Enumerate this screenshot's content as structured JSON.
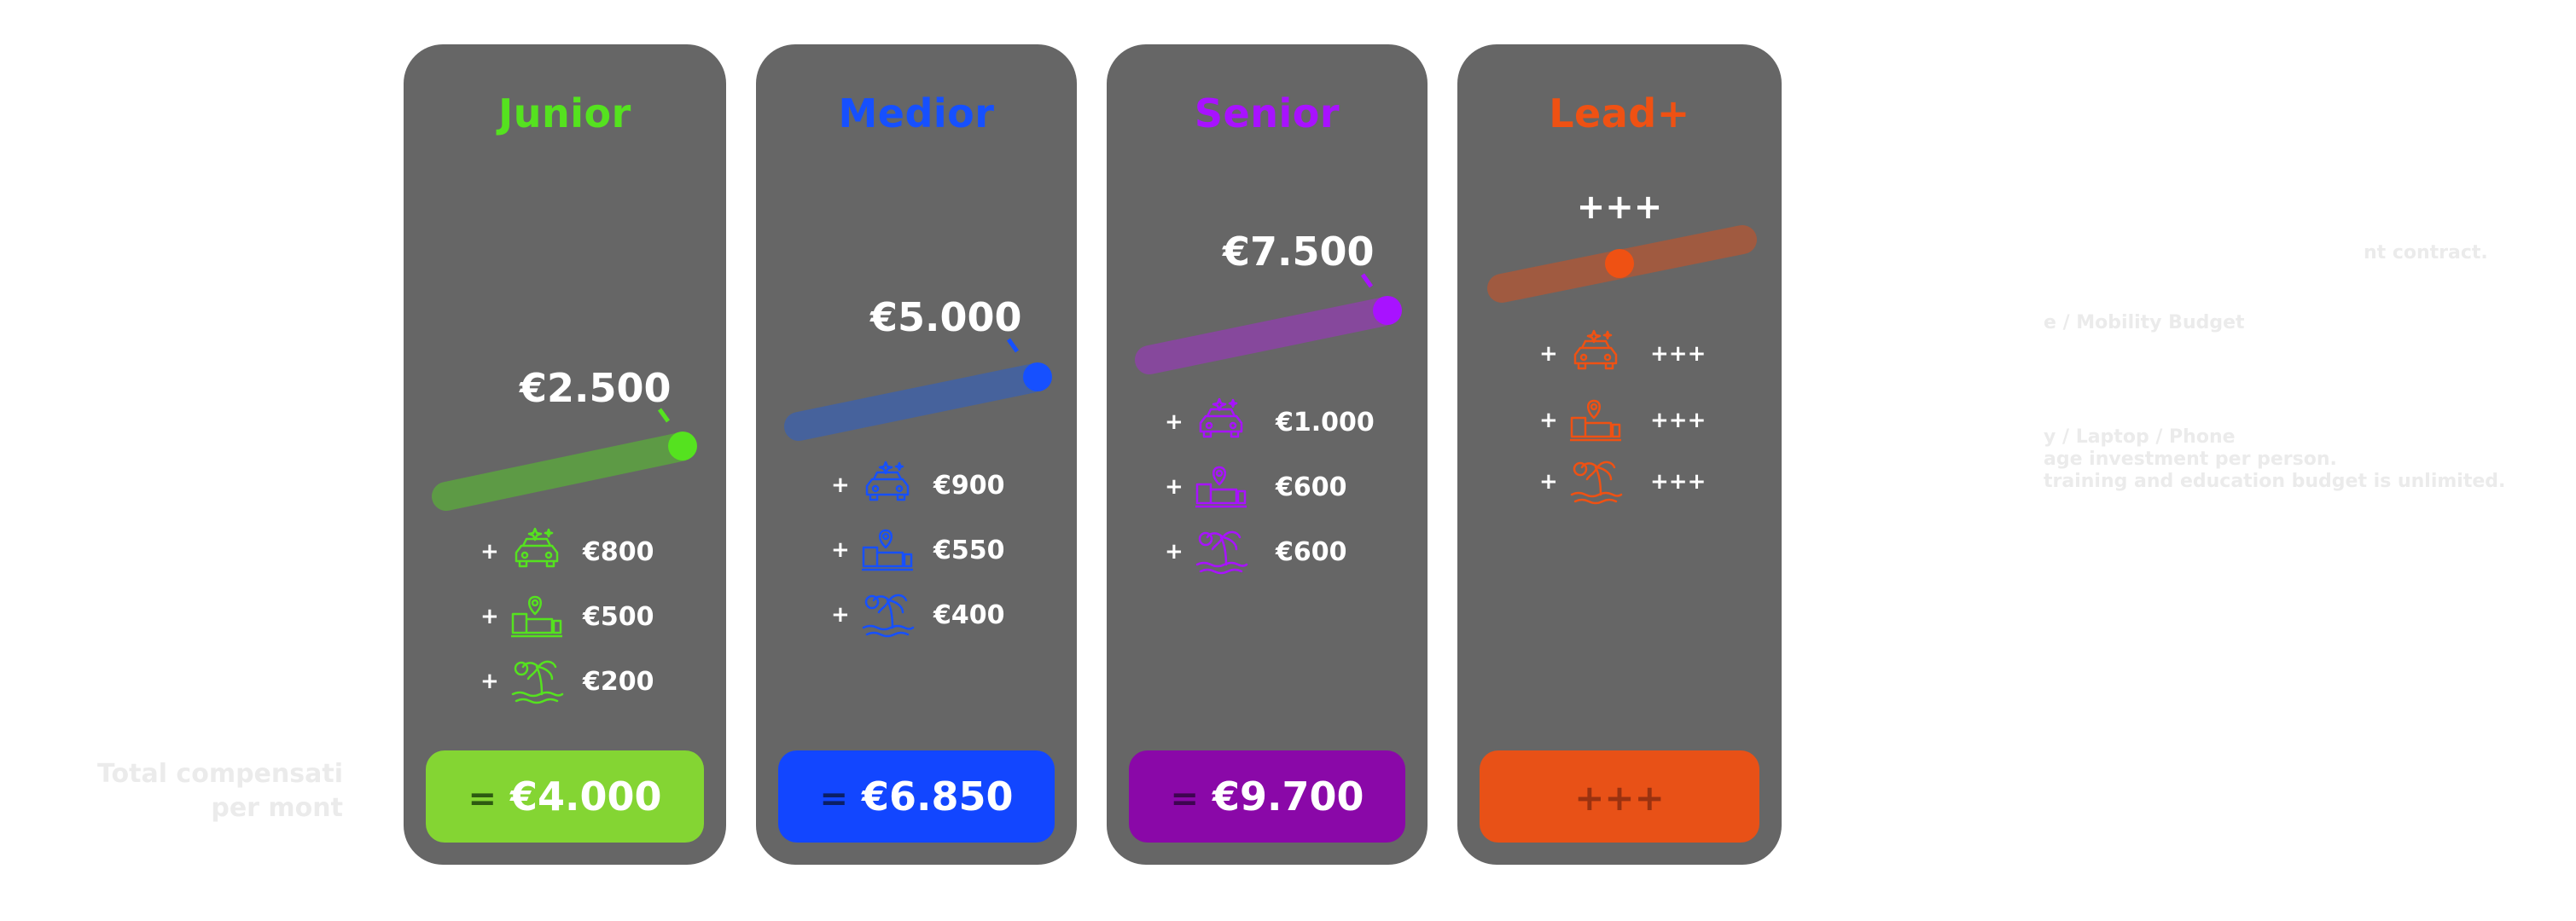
{
  "left_label": {
    "line1": "Total compensati",
    "line2": "per mont"
  },
  "right_notes": {
    "line1": "nt contract.",
    "line2": "e / Mobility Budget",
    "line3": "y / Laptop / Phone",
    "line4": "age investment per person.",
    "line5": "training and education budget is unlimited."
  },
  "colors": {
    "card": "#666666",
    "junior": "#55e21f",
    "medior": "#1650ff",
    "senior": "#a812ff",
    "lead": "#ef5113"
  },
  "icons": [
    "car-icon",
    "home-office-icon",
    "vacation-palm-icon"
  ],
  "cards": [
    {
      "title": "Junior",
      "color": "#55e21f",
      "track": "#5d9a45",
      "salary": "€2.500",
      "benefits": [
        "€800",
        "€500",
        "€200"
      ],
      "total_prefix": "=",
      "total": "€4.000",
      "total_bg": "#84d533",
      "total_fg": "#ffffff",
      "eq_fg": "#2d5a11"
    },
    {
      "title": "Medior",
      "color": "#1650ff",
      "track": "#46629c",
      "salary": "€5.000",
      "benefits": [
        "€900",
        "€550",
        "€400"
      ],
      "total_prefix": "=",
      "total": "€6.850",
      "total_bg": "#1246ff",
      "total_fg": "#ffffff",
      "eq_fg": "#0b1f66"
    },
    {
      "title": "Senior",
      "color": "#a812ff",
      "track": "#86489c",
      "salary": "€7.500",
      "benefits": [
        "€1.000",
        "€600",
        "€600"
      ],
      "total_prefix": "=",
      "total": "€9.700",
      "total_bg": "#8a08a8",
      "total_fg": "#ffffff",
      "eq_fg": "#3e0550"
    },
    {
      "title": "Lead+",
      "color": "#ef5113",
      "track": "#a05a40",
      "salary": "+++",
      "benefits": [
        "+++",
        "+++",
        "+++"
      ],
      "total_prefix": "",
      "total": "+++",
      "total_bg": "#e85117",
      "total_fg": "#9a3210",
      "eq_fg": "#9a3210"
    }
  ]
}
